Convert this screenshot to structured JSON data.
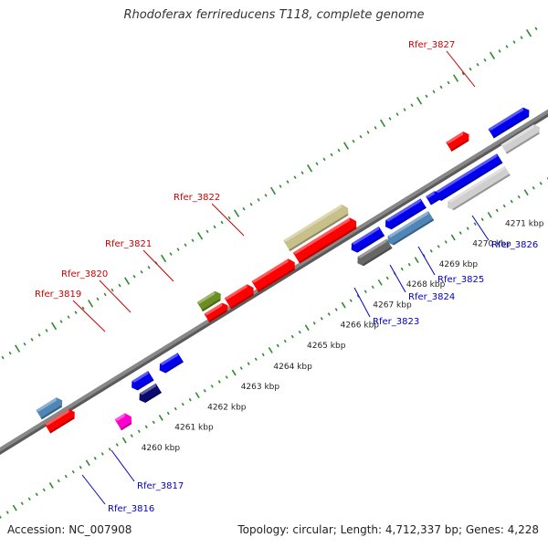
{
  "title": "Rhodoferax ferrireducens T118, complete genome",
  "footer": {
    "accession": "Accession: NC_007908",
    "topology": "Topology: circular; Length: 4,712,337 bp; Genes: 4,228"
  },
  "colors": {
    "background": "#ffffff",
    "backbone": "#888888",
    "tick": "#2e8b2e",
    "feature_label_red": "#cc0000",
    "feature_label_blue": "#0000cc",
    "kbp_label": "#222222",
    "red_gene": "#ff0000",
    "blue_gene": "#0000ee",
    "steel_gene": "#4f86b6",
    "navy_gene": "#0a0a70",
    "gray_gene": "#666666",
    "light_gray_gene": "#cfcfcf",
    "olive_gene": "#6b8e23",
    "khaki_gene": "#c8c08a",
    "magenta_gene": "#ff00cc"
  },
  "kbp_labels": [
    {
      "text": "4260 kbp"
    },
    {
      "text": "4261 kbp"
    },
    {
      "text": "4262 kbp"
    },
    {
      "text": "4263 kbp"
    },
    {
      "text": "4264 kbp"
    },
    {
      "text": "4265 kbp"
    },
    {
      "text": "4266 kbp"
    },
    {
      "text": "4267 kbp"
    },
    {
      "text": "4268 kbp"
    },
    {
      "text": "4269 kbp"
    },
    {
      "text": "4270 kbp"
    },
    {
      "text": "4271 kbp"
    }
  ],
  "feature_labels": [
    {
      "text": "Rfer_3827",
      "strand": "top"
    },
    {
      "text": "Rfer_3822",
      "strand": "top"
    },
    {
      "text": "Rfer_3821",
      "strand": "top"
    },
    {
      "text": "Rfer_3820",
      "strand": "top"
    },
    {
      "text": "Rfer_3819",
      "strand": "top"
    },
    {
      "text": "Rfer_3826",
      "strand": "bottom"
    },
    {
      "text": "Rfer_3825",
      "strand": "bottom"
    },
    {
      "text": "Rfer_3824",
      "strand": "bottom"
    },
    {
      "text": "Rfer_3823",
      "strand": "bottom"
    },
    {
      "text": "Rfer_3817",
      "strand": "bottom"
    },
    {
      "text": "Rfer_3816",
      "strand": "bottom"
    }
  ],
  "genes": [
    {
      "name": "gene-rfer-3827",
      "color": "red_gene"
    },
    {
      "name": "gene-top-blue-right",
      "color": "blue_gene"
    },
    {
      "name": "gene-top-gray-right",
      "color": "light_gray_gene"
    },
    {
      "name": "gene-rfer-3822-khaki",
      "color": "khaki_gene"
    },
    {
      "name": "gene-rfer-3822-red",
      "color": "red_gene"
    },
    {
      "name": "gene-rfer-3821",
      "color": "red_gene"
    },
    {
      "name": "gene-rfer-3820",
      "color": "red_gene"
    },
    {
      "name": "gene-rfer-3819-red",
      "color": "red_gene"
    },
    {
      "name": "gene-rfer-3819-olive",
      "color": "olive_gene"
    },
    {
      "name": "gene-left-steel",
      "color": "steel_gene"
    },
    {
      "name": "gene-left-red",
      "color": "red_gene"
    },
    {
      "name": "gene-rfer-3826",
      "color": "blue_gene"
    },
    {
      "name": "gene-rfer-3826-gray",
      "color": "light_gray_gene"
    },
    {
      "name": "gene-rfer-3825",
      "color": "blue_gene"
    },
    {
      "name": "gene-rfer-3825-small",
      "color": "blue_gene"
    },
    {
      "name": "gene-rfer-3824",
      "color": "steel_gene"
    },
    {
      "name": "gene-rfer-3823-blue",
      "color": "blue_gene"
    },
    {
      "name": "gene-rfer-3823-gray",
      "color": "gray_gene"
    },
    {
      "name": "gene-rfer-3817",
      "color": "blue_gene"
    },
    {
      "name": "gene-rfer-3816-blue",
      "color": "blue_gene"
    },
    {
      "name": "gene-rfer-3816-navy",
      "color": "navy_gene"
    },
    {
      "name": "gene-edge-magenta",
      "color": "magenta_gene"
    }
  ]
}
